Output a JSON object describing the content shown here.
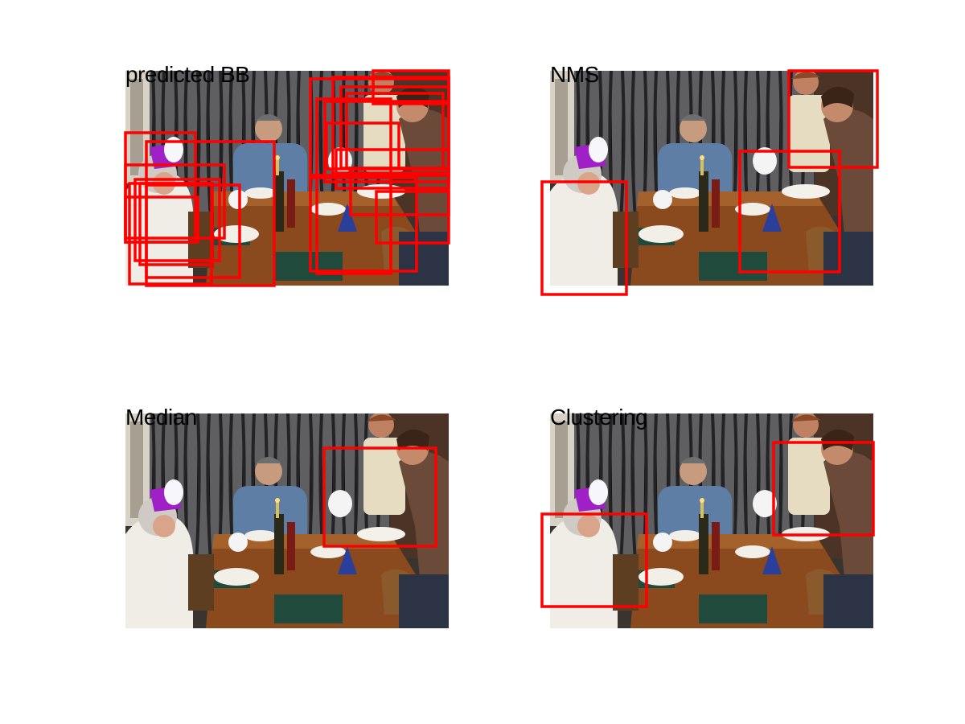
{
  "figure": {
    "colors": {
      "box_stroke": "#ff0000",
      "background": "#ffffff",
      "title_color": "#000000"
    },
    "panels": [
      {
        "id": "predicted-bb",
        "title": "predicted BB"
      },
      {
        "id": "nms",
        "title": "NMS"
      },
      {
        "id": "median",
        "title": "Median"
      },
      {
        "id": "clustering",
        "title": "Clustering"
      }
    ]
  }
}
